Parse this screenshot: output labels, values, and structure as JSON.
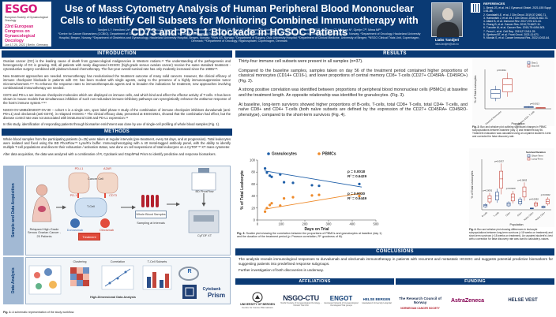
{
  "header": {
    "logo_main": "ESGO",
    "logo_sub": "European Society of Gynaecological Oncology",
    "logo_congress": "23rd European Congress on Gynaecological Oncology",
    "logo_dates": "Jun 17-20, 2022 | Berlin, Germany",
    "title": "Use of Mass Cytometry Analysis of Human Peripheral Blood Mononuclear Cells to Identify Cell Subsets for Monitoring Combined Immunotherapy with CD73 and PD-L1 Blockade in HGSOC Patients",
    "authors": "Tandjerí L.¹, Hernihen Ue¹, Hoertham Thomsen LL²³, Hohnn Christensen B¹, Walbetmen M¹², Odemjak JT¹, Rood HF, Lindemann K², Nicimnemsi K², Aukeran W, McCormack E¹²³, Lindberg C², Madsen N¹, Gjertje C²³, Mima MP¹",
    "affil_lines": "¹Centre for Cancer Biomarkers (CCBIO), Department of Clinical Science, University of Bergen, Norway; ²Department of Gynaecologic Oncology, Oslo University Hospital, Norway; ³Department of Clinical Medicine, University of Oslo, Norway; ⁴Department of Oncology, Haukeland University Hospital, Bergen, Norway; ⁵Department of Obstetrics and Gynaecology, Haukeland University Hospital, Bergen, Norway; ⁶Vivis AS, Norway; ⁷Department of Surgery, Oslo University Hospital; ⁸Department of Clinical Medicine, University of Bergen; ⁹NSGO Clinical Trials Unit, Copenhagen, Denmark; ¹⁰Department of Oncology, Rigshospitalet, Copenhagen, Denmark",
    "presenter_name": "Liaks Tandjerí",
    "presenter_email": "liaks.tandjeri@uib.no",
    "references_title": "REFERENCES",
    "references": [
      "1. Berek JS, et al. Int J Gynaecol Obstet. 2021;155 Suppl 1:61-85.",
      "2. Kandalaft LE, et al. J Clin Oncol. 2019;37:2460-71.",
      "3. Hamanishi J, et al. Int J Clin Oncol. 2016;21:462-73.",
      "4. Allard B, et al. Immunol Rev. 2017;276:121-44.",
      "5. Zhang B, et al. Cancer Res. 2010;70:6407-11.",
      "6. Turcotte M, et al. Cancer Res. 2015;75:4494-503.",
      "7. Perrot I, et al. Cell Rep. 2019;27:2411-25.",
      "8. Gjertsen BT, et al. Front Oncol. 2021;11:671.",
      "9. Mordal S, et al. Cancer Immunol Res. 2022;10:52-64."
    ]
  },
  "sections": {
    "introduction": "INTRODUCTION",
    "methods": "METHODS",
    "results": "RESULTS",
    "conclusions": "CONCLUSIONS",
    "affiliations": "AFFILIATIONS",
    "funding": "FUNDING"
  },
  "introduction": {
    "p1": "Ovarian cancer (OC) is the leading cause of death from gynaecological malignancies in Western nations.¹² The understanding of the pathogenesis and heterogeneity of OC is growing. Still, all patients with newly diagnosed HGSOC (high-grade serous ovarian cancer) receive the same standard treatment - cytoreductive surgery combined with platinum-based chemotherapy. The five-year overall survival rate has only modestly increased since the 1980s¹²³.",
    "p2": "New treatment approaches are needed. Immunotherapy has revolutionised the treatment outcome of many solid cancers. However, the clinical efficacy of immune checkpoint blockade in patients with OC has been modest with single agents, owing to the presence of a highly immunosuppressive tumor microenvironment.⁴⁵⁶ To enhance the response rates to immunotherapeutic agents and to broaden the indications for treatment, new approaches involving combinational immunotherapy are needed.",
    "p3": "CD73 and PD-L1 are immune checkpoint molecules which are displayed on immune cells, and which bind and affect the effector activity of T-cells. It has been shown in mouse models that simultaneous inhibition of such non-redundant immune-inhibitory pathways can synergistically enhance the antitumor response of the host's immune system.⁶⁷⁸⁹",
    "p4": "NSGO-OV-UMB1/ENGOT-OV-30 – cohort A is a single arm, open label phase II study of the combination of immune checkpoint inhibitors durvalumab (anti-PD-L1) and oleclumab (anti-CD73), in relapsed HGSOC.⁸ The clinical efficacy data, presented at ESGO2021, showed that the combination had effect, but the disease control rate was not associated with intratumoral CD8 and PD-L1 expression.⁸⁹",
    "p5": "In this study, identification of responding patients through biomarker enrichment was done by use of single-cell profiling of whole blood samples (Fig. 1)."
  },
  "methods": {
    "p1": "Whole blood samples from the participating patients (n=25) were taken at regular intervals (pre-treatment, every 56 days, and at progression). Total leukocytes were isolated and fixed using the BD PhosFlow™ Lyse/Fix buffer. Immunophenotyping with a 40 metal-tagged antibody panel, with the ability to identify multiple T-cell populations and discern their exhaustion / activation status, was done on cell suspensions of total leukocytes on a CyTOF™ XT mass cytometer.",
    "p2": "After data acquisition, the data was analyzed with a combination of R, Cytobank and GraphPad Prism to identify predictive and response biomarkers."
  },
  "fig1": {
    "row1_label": "Sample and Data Acquisition",
    "row2_label": "Data Analysis",
    "relapsed_label": "Relapsed High-Grade Serous Ovarian Cancer - 25 Patients",
    "pdl1_label": "PD-L1",
    "a2ar_label": "A2AR",
    "pd1_label": "PD-1",
    "cd73_label": "CD73",
    "durvalumab": "Durvalumab",
    "oleclumab": "Oleclumab",
    "treatment": "Treatment",
    "tcell": "T-Cell",
    "cancer_cell": "Cancer Cell",
    "whole_blood": "Whole Blood Samples",
    "sampling": "Sampling at Intervals",
    "phosflow": "BD PhosFlow",
    "cytof": "CyTOF XT",
    "clustering": "Clustering",
    "correlation": "Correlation",
    "tcell_subsets": "T-Cell Subsets",
    "hd_analysis": "High-Dimensional Data Analysis",
    "cytobank": "Cytobank",
    "prism": "Prism",
    "r_label": "R",
    "caption_bold": "Fig. 1:",
    "caption": "A schematic representation of the study workflow."
  },
  "results": {
    "p1": "Thirty-four immune cell subsets were present in all samples (n=37).",
    "p2": "Compared to the baseline samples, samples taken on day 56 of the treatment period contained higher proportions of classical monocytes (CD14+ CD16-), and lower proportions of central memory CD8+ T-cells (CD27+ CD45RA- CD45RO+) (Fig. 2).",
    "p3": "A strong positive correlation was identified between proportions of peripheral blood mononuclear cells (PBMCs) at baseline and the treatment length. An opposite relationship was identified for granulocytes. (Fig. 3).",
    "p4": "At baseline, long-term survivors showed higher proportions of B-cells, T-cells, total CD8+ T-cells, total CD4+ T-cells, and naïve CD8+ and CD4+ T-cells (both naïve subsets are defined by the expression of the CD27+ CD45RA+ CD45RO- phenotype), compared to the short-term survivors (Fig. 4)."
  },
  "fig3": {
    "chart_data": {
      "type": "scatter",
      "title": "",
      "xlabel": "Days on Trial",
      "ylabel": "% of Total Leukocyte",
      "xlim": [
        0,
        500
      ],
      "ylim": [
        0,
        100
      ],
      "xticks": [
        0,
        100,
        200,
        300,
        400,
        500
      ],
      "yticks": [
        0,
        20,
        40,
        60,
        80,
        100
      ],
      "series": [
        {
          "name": "Granulocytes",
          "color": "#1f5fa8",
          "points": [
            [
              32,
              86
            ],
            [
              40,
              79
            ],
            [
              52,
              74
            ],
            [
              60,
              72
            ],
            [
              96,
              76
            ],
            [
              112,
              63
            ],
            [
              150,
              62
            ],
            [
              230,
              58
            ],
            [
              260,
              57
            ],
            [
              430,
              60
            ]
          ],
          "fit": [
            [
              30,
              82
            ],
            [
              440,
              55
            ]
          ],
          "p_text": "p = 0.0018",
          "r2_text": "R² = 0.6429"
        },
        {
          "name": "PBMCs",
          "color": "#ee8a2a",
          "points": [
            [
              32,
              14
            ],
            [
              40,
              20
            ],
            [
              52,
              25
            ],
            [
              60,
              28
            ],
            [
              96,
              24
            ],
            [
              112,
              36
            ],
            [
              150,
              38
            ],
            [
              230,
              41
            ],
            [
              260,
              42
            ],
            [
              430,
              40
            ]
          ],
          "fit": [
            [
              30,
              18
            ],
            [
              440,
              45
            ]
          ],
          "p_text": "p = 0.0030",
          "r2_text": "R² = 0.6449"
        }
      ]
    },
    "caption_bold": "Fig. 3:",
    "caption": "Scatter plot showing the correlation between the proportions of PBMCs and granulocytes at baseline (day 1) and the duration of the treatment period (p: Pearson correlation, R²: goodness of fit)."
  },
  "fig2": {
    "chart_data": {
      "type": "bar",
      "title": "",
      "ylabel": "% of Total Leukocytes",
      "categories": [
        "Classical Monocytes",
        "Central Memory CD8+ T-cells"
      ],
      "legend": [
        "Day 1",
        "Day 56"
      ],
      "day1": [
        14,
        1.6
      ],
      "day56": [
        22,
        0.9
      ],
      "p_values": [
        "p=0.0011",
        "p=0.0013"
      ],
      "colors": [
        "#2b4f8a",
        "#c2453b"
      ]
    },
    "xlabel": "Population",
    "caption_bold": "Fig. 2:",
    "caption": "Box and whisker plot outlining significant changes in PBMC subpopulations between baseline (day 1) and treatment day 56. Treatment evaluation was calculated using an unpaired student's t-test and corrected for false discovery rate."
  },
  "fig4": {
    "chart_data": {
      "type": "bar",
      "title": "",
      "ylabel": "% of Total Leukocytes",
      "categories": [
        "B-cells",
        "T-cells",
        "CD8+",
        "CD4+",
        "Naïve CD8+",
        "Naïve CD4+"
      ],
      "legend_title": "Survival Duration",
      "legend": [
        "Short-Term",
        "Long-Term"
      ],
      "short_term": [
        3,
        10,
        4,
        6,
        1,
        2
      ],
      "long_term": [
        8,
        22,
        9,
        13,
        4,
        6
      ],
      "p_values": [
        "p=0.0091",
        "p=0.0037",
        "p=0.0100",
        "p=0.0063",
        "p=0.0092",
        "p=0.0042"
      ],
      "colors": [
        "#2b4f8a",
        "#c2453b"
      ]
    },
    "xlabel": "Population",
    "caption_bold": "Fig. 4:",
    "caption": "Box and whisker plot showing differences in leukocyte subpopulations between long-term survivors (>18 weeks on treatment) and short-term survivors (<18 weeks on treatment). An unpaired student's t-test with a correction for false discovery rate was used to calculate p-values."
  },
  "conclusions": {
    "p1": "The analysis reveals immunological responses to durvalumab and oleclumab immunotherapy in patients with recurrent and metastatic HGSOC and suggests potential predictive biomarkers for suggesting patients into predefined response subgroups.",
    "p2": "Further investigation of both discoveries is underway."
  },
  "affiliations": {
    "uib": "UNIVERSITY OF BERGEN",
    "uib_sub": "Centre for Cancer Biomarkers",
    "nsgo": "NSGO-CTU",
    "nsgo_sub": "Nordic Society of Gynaecological Oncology - Clinical Trial Unit",
    "engot": "ENGOT",
    "engot_sub": "European Network of Gynaecological Oncological Trial groups",
    "haukeland": "HELSE BERGEN",
    "haukeland_sub": "Haukeland University Hospital"
  },
  "funding": {
    "rcn": "The Research Council of Norway",
    "astrazeneca": "AstraZeneca",
    "ncs": "NORWEGIAN CANCER SOCIETY",
    "hv": "HELSE VEST"
  }
}
